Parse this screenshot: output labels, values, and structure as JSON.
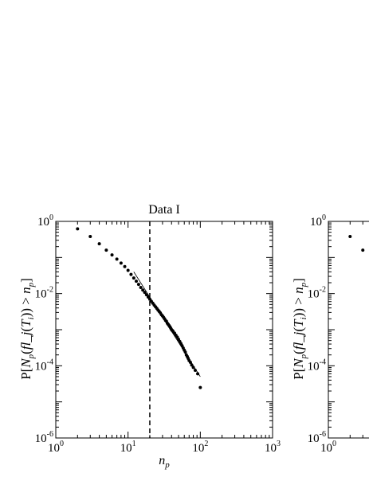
{
  "chart_data": [
    {
      "type": "scatter",
      "title": "Data I",
      "xlabel": "n_p",
      "ylabel": "P[N_p(fl_j(T_i)) > n_p]",
      "xscale": "log",
      "yscale": "log",
      "xlim": [
        1,
        1000
      ],
      "ylim": [
        1e-06,
        1
      ],
      "x_ticks": [
        1,
        10,
        100,
        1000
      ],
      "y_ticks": [
        1,
        0.01,
        0.0001,
        1e-06
      ],
      "vertical_line_x": 20,
      "series": [
        {
          "style": "points",
          "x": [
            2,
            3,
            4,
            5,
            6,
            7,
            8,
            9,
            10,
            11,
            12,
            13,
            14,
            15,
            16,
            17,
            18,
            19,
            20,
            21,
            22,
            23,
            24,
            25,
            26,
            27,
            28,
            29,
            30,
            31,
            32,
            33,
            34,
            35,
            36,
            37,
            38,
            39,
            40,
            41,
            42,
            44,
            46,
            48,
            50,
            52,
            54,
            56,
            58,
            60,
            62,
            64,
            66,
            68,
            70,
            73,
            76,
            80,
            85,
            92,
            100
          ],
          "y": [
            0.62,
            0.38,
            0.24,
            0.16,
            0.118,
            0.09,
            0.07,
            0.056,
            0.044,
            0.034,
            0.027,
            0.022,
            0.018,
            0.0148,
            0.0125,
            0.0108,
            0.0093,
            0.008,
            0.007,
            0.0061,
            0.0054,
            0.0048,
            0.0043,
            0.0039,
            0.0035,
            0.0032,
            0.0029,
            0.0026,
            0.0024,
            0.0022,
            0.002,
            0.0018,
            0.0017,
            0.0015,
            0.0014,
            0.0013,
            0.0012,
            0.0011,
            0.001,
            0.00095,
            0.0009,
            0.0008,
            0.0007,
            0.00062,
            0.00054,
            0.00047,
            0.00041,
            0.00036,
            0.00031,
            0.00027,
            0.00024,
            0.0002,
            0.00018,
            0.00016,
            0.00014,
            0.000125,
            0.000105,
            9e-05,
            7.5e-05,
            6e-05,
            2.5e-05
          ]
        },
        {
          "style": "line",
          "x": [
            12,
            100
          ],
          "y": [
            0.04,
            5e-05
          ]
        }
      ]
    },
    {
      "type": "scatter",
      "title": "",
      "xlabel": "",
      "ylabel": "P[N_p(fl_j(T_i)) > n_p]",
      "xscale": "log",
      "yscale": "log",
      "xlim": [
        1,
        1000
      ],
      "ylim": [
        1e-06,
        1
      ],
      "x_ticks": [
        1
      ],
      "y_ticks": [
        1,
        0.01,
        0.0001,
        1e-06
      ],
      "series": [
        {
          "style": "points",
          "x": [
            2,
            3
          ],
          "y": [
            0.38,
            0.16
          ]
        }
      ]
    }
  ]
}
